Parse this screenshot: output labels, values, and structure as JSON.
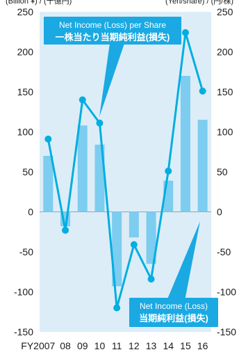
{
  "chart_data": {
    "type": "bar+line",
    "units": {
      "left": "(Billion ¥) / (十億円)",
      "right": "(Yen/share) / (円/株)"
    },
    "categories": [
      "FY2007",
      "08",
      "09",
      "10",
      "11",
      "12",
      "13",
      "14",
      "15",
      "16"
    ],
    "series": [
      {
        "name": "Net Income (Loss) / 当期純利益(損失)",
        "type": "bar",
        "axis": "left",
        "values": [
          70,
          -18,
          108,
          84,
          -93,
          -32,
          -65,
          39,
          170,
          115
        ]
      },
      {
        "name": "Net Income (Loss) per Share / 一株当たり当期純利益(損失)",
        "type": "line",
        "axis": "right",
        "values": [
          91,
          -23,
          140,
          111,
          -120,
          -41,
          -84,
          51,
          224,
          151
        ]
      }
    ],
    "ylim": [
      -150,
      250
    ],
    "yticks": [
      "250",
      "200",
      "150",
      "100",
      "50",
      "0",
      "-50",
      "-100",
      "-150"
    ],
    "callouts": {
      "eps_en": "Net Income (Loss) per Share",
      "eps_ja": "一株当たり当期純利益(損失)",
      "ni_en": "Net Income (Loss)",
      "ni_ja": "当期純利益(損失)"
    },
    "colors": {
      "plot_bg": "#dcedf8",
      "bar": "#7ccdf0",
      "line": "#00aee0",
      "callout_bg": "#1aa9e2"
    }
  }
}
